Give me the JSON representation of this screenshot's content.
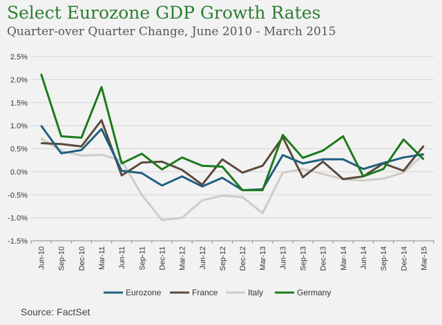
{
  "title": "Select Eurozone GDP Growth Rates",
  "subtitle": "Quarter-over Quarter Change, June 2010 - March 2015",
  "source": "Source: FactSet",
  "chart_data": {
    "type": "line",
    "x": [
      "Jun-10",
      "Sep-10",
      "Dec-10",
      "Mar-11",
      "Jun-11",
      "Sep-11",
      "Dec-11",
      "Mar-12",
      "Jun-12",
      "Sep-12",
      "Dec-12",
      "Mar-13",
      "Jun-13",
      "Sep-13",
      "Dec-13",
      "Mar-14",
      "Jun-14",
      "Sep-14",
      "Dec-14",
      "Mar-15"
    ],
    "ylim": [
      -1.5,
      2.5
    ],
    "yticks": [
      "-1.5%",
      "-1.0%",
      "-0.5%",
      "0.0%",
      "0.5%",
      "1.0%",
      "1.5%",
      "2.0%",
      "2.5%"
    ],
    "grid": true,
    "legend_position": "bottom",
    "series": [
      {
        "name": "Eurozone",
        "color": "#1f5f7f",
        "values": [
          1.0,
          0.4,
          0.47,
          0.93,
          0.02,
          -0.03,
          -0.3,
          -0.1,
          -0.32,
          -0.13,
          -0.4,
          -0.38,
          0.36,
          0.18,
          0.27,
          0.27,
          0.06,
          0.19,
          0.31,
          0.38
        ]
      },
      {
        "name": "France",
        "color": "#5a4a3a",
        "values": [
          0.62,
          0.6,
          0.55,
          1.12,
          -0.08,
          0.2,
          0.22,
          0.04,
          -0.28,
          0.27,
          -0.02,
          0.13,
          0.75,
          -0.12,
          0.22,
          -0.16,
          -0.1,
          0.18,
          0.02,
          0.56
        ]
      },
      {
        "name": "Italy",
        "color": "#cfcbc5",
        "values": [
          0.72,
          0.45,
          0.35,
          0.37,
          0.24,
          -0.5,
          -1.05,
          -1.0,
          -0.62,
          -0.52,
          -0.55,
          -0.9,
          -0.02,
          0.06,
          -0.05,
          -0.16,
          -0.19,
          -0.15,
          -0.02,
          0.38
        ]
      },
      {
        "name": "Germany",
        "color": "#1a7a1a",
        "values": [
          2.12,
          0.77,
          0.74,
          1.84,
          0.18,
          0.39,
          0.05,
          0.31,
          0.13,
          0.11,
          -0.4,
          -0.4,
          0.8,
          0.3,
          0.46,
          0.77,
          -0.1,
          0.06,
          0.7,
          0.27
        ]
      }
    ]
  }
}
